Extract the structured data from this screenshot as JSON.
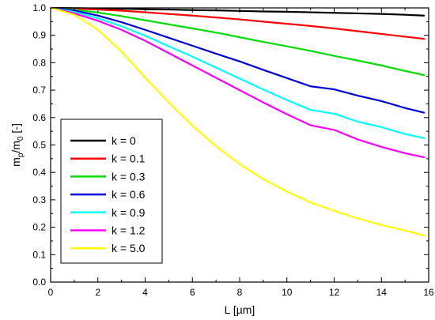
{
  "chart_data": {
    "type": "line",
    "xlabel": "L  [µm]",
    "ylabel": {
      "base": "m",
      "sub1": "p",
      "mid": "/m",
      "sub2": "0",
      "unit": " [-]"
    },
    "xlim": [
      0,
      16
    ],
    "ylim": [
      0,
      1.0
    ],
    "x_ticks": [
      0,
      2,
      4,
      6,
      8,
      10,
      12,
      14,
      16
    ],
    "x_tick_labels": [
      "0",
      "2",
      "4",
      "6",
      "8",
      "10",
      "12",
      "14",
      "16"
    ],
    "y_ticks": [
      0,
      0.1,
      0.2,
      0.3,
      0.4,
      0.5,
      0.6,
      0.7,
      0.8,
      0.9,
      1.0
    ],
    "y_tick_labels": [
      "0.0",
      "0.1",
      "0.2",
      "0.3",
      "0.4",
      "0.5",
      "0.6",
      "0.7",
      "0.8",
      "0.9",
      "1.0"
    ],
    "grid": false,
    "legend_position": "lower-left",
    "x": [
      0,
      1,
      2,
      3,
      4,
      5,
      6,
      7,
      8,
      9,
      10,
      11,
      12,
      13,
      14,
      15,
      15.8
    ],
    "series": [
      {
        "name": "k = 0",
        "color": "#000000",
        "values": [
          1.0,
          0.999,
          0.998,
          0.997,
          0.995,
          0.994,
          0.992,
          0.991,
          0.989,
          0.987,
          0.986,
          0.984,
          0.982,
          0.98,
          0.978,
          0.975,
          0.972
        ]
      },
      {
        "name": "k = 0.1",
        "color": "#ff0000",
        "values": [
          1.0,
          0.997,
          0.994,
          0.99,
          0.984,
          0.978,
          0.972,
          0.965,
          0.958,
          0.95,
          0.942,
          0.934,
          0.925,
          0.915,
          0.905,
          0.895,
          0.887
        ]
      },
      {
        "name": "k = 0.3",
        "color": "#00dd00",
        "values": [
          1.0,
          0.993,
          0.983,
          0.97,
          0.955,
          0.94,
          0.925,
          0.91,
          0.893,
          0.876,
          0.86,
          0.843,
          0.825,
          0.808,
          0.79,
          0.77,
          0.755
        ]
      },
      {
        "name": "k = 0.6",
        "color": "#0000dd",
        "values": [
          1.0,
          0.99,
          0.972,
          0.948,
          0.92,
          0.891,
          0.862,
          0.833,
          0.805,
          0.774,
          0.744,
          0.714,
          0.703,
          0.68,
          0.66,
          0.635,
          0.618
        ]
      },
      {
        "name": "k = 0.9",
        "color": "#00ffff",
        "values": [
          1.0,
          0.985,
          0.962,
          0.933,
          0.898,
          0.86,
          0.822,
          0.782,
          0.742,
          0.702,
          0.664,
          0.628,
          0.614,
          0.585,
          0.565,
          0.54,
          0.525
        ]
      },
      {
        "name": "k = 1.2",
        "color": "#ff00ff",
        "values": [
          1.0,
          0.98,
          0.953,
          0.92,
          0.88,
          0.835,
          0.79,
          0.745,
          0.7,
          0.655,
          0.612,
          0.572,
          0.555,
          0.52,
          0.493,
          0.47,
          0.455
        ]
      },
      {
        "name": "k = 5.0",
        "color": "#ffff00",
        "values": [
          1.0,
          0.975,
          0.92,
          0.84,
          0.745,
          0.655,
          0.57,
          0.495,
          0.43,
          0.375,
          0.33,
          0.29,
          0.26,
          0.232,
          0.208,
          0.188,
          0.17
        ]
      }
    ]
  }
}
